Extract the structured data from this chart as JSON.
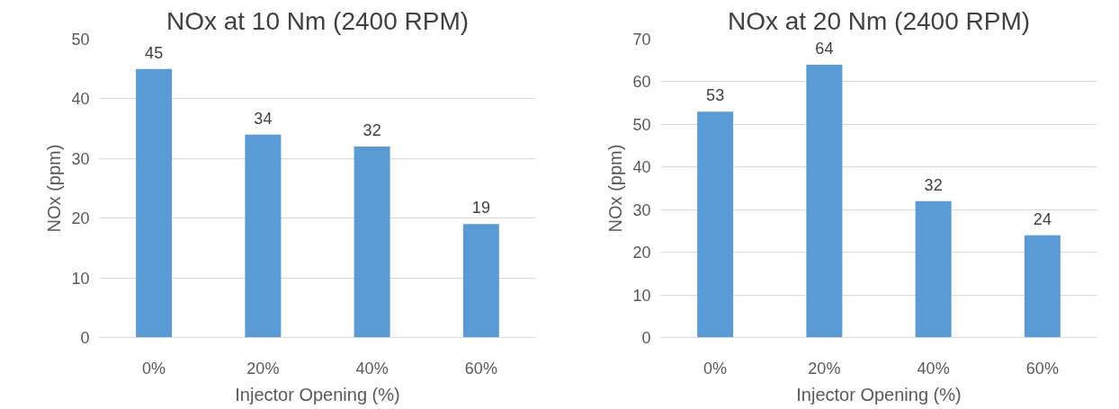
{
  "chart_data": [
    {
      "type": "bar",
      "title": "NOx at 10 Nm (2400 RPM)",
      "xlabel": "Injector Opening (%)",
      "ylabel": "NOx (ppm)",
      "categories": [
        "0%",
        "20%",
        "40%",
        "60%"
      ],
      "values": [
        45,
        34,
        32,
        19
      ],
      "color": "#5b9bd5",
      "ylim": [
        0,
        50
      ],
      "yticks": [
        0,
        10,
        20,
        30,
        40,
        50
      ],
      "grid": "y",
      "data_labels": true
    },
    {
      "type": "bar",
      "title": "NOx at 20 Nm (2400 RPM)",
      "xlabel": "Injector Opening (%)",
      "ylabel": "NOx (ppm)",
      "categories": [
        "0%",
        "20%",
        "40%",
        "60%"
      ],
      "values": [
        53,
        64,
        32,
        24
      ],
      "color": "#5b9bd5",
      "ylim": [
        0,
        70
      ],
      "yticks": [
        0,
        10,
        20,
        30,
        40,
        50,
        60,
        70
      ],
      "grid": "y",
      "data_labels": true
    }
  ]
}
